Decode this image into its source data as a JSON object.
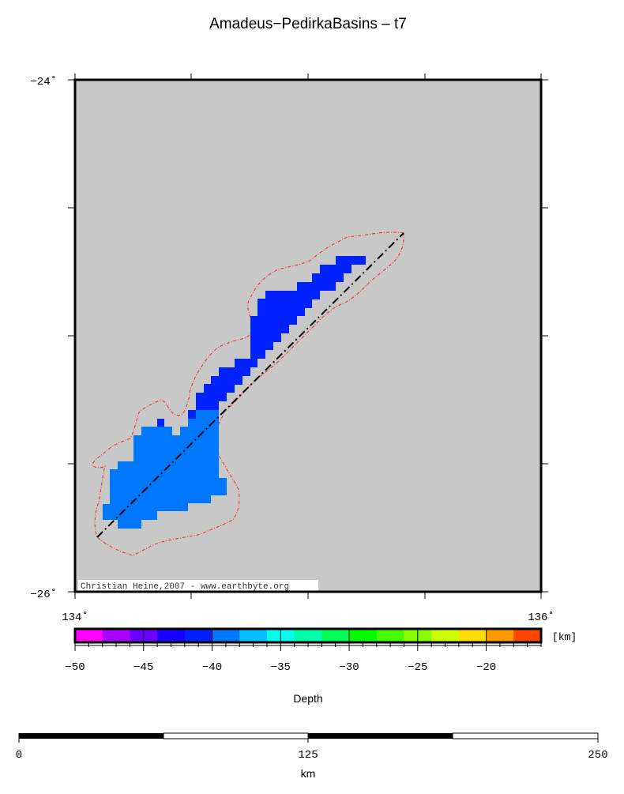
{
  "title": "Amadeus−PedirkaBasins – t7",
  "map": {
    "lat_labels": [
      "−24˚",
      "−26˚"
    ],
    "lon_labels": [
      "134˚",
      "136˚"
    ],
    "lon_range": [
      134,
      136
    ],
    "lat_range": [
      -26,
      -24
    ],
    "credit": "Christian Heine,2007 - www.earthbyte.org",
    "background_color": "#c8c8c8",
    "outline_color": "#ff2020",
    "depth_cells": [
      {
        "depth_range_km": [
          -42,
          -40
        ],
        "color": "#0022ff"
      },
      {
        "depth_range_km": [
          -40,
          -38
        ],
        "color": "#0077ff"
      }
    ]
  },
  "colorbar": {
    "unit": "[km]",
    "label": "Depth",
    "range": [
      -50,
      -16
    ],
    "tick_labels": [
      "−50",
      "−45",
      "−40",
      "−35",
      "−30",
      "−25",
      "−20"
    ],
    "colors": [
      "#ff00ff",
      "#aa00ff",
      "#6a00ff",
      "#1a00ff",
      "#0022ff",
      "#0077ff",
      "#00c0ff",
      "#00ffee",
      "#00ffaa",
      "#00ff55",
      "#00ff00",
      "#44ff00",
      "#88ff00",
      "#ccff00",
      "#ffdd00",
      "#ff9900",
      "#ff4400"
    ]
  },
  "scalebar": {
    "tick_labels": [
      "0",
      "125",
      "250"
    ],
    "unit": "km"
  }
}
